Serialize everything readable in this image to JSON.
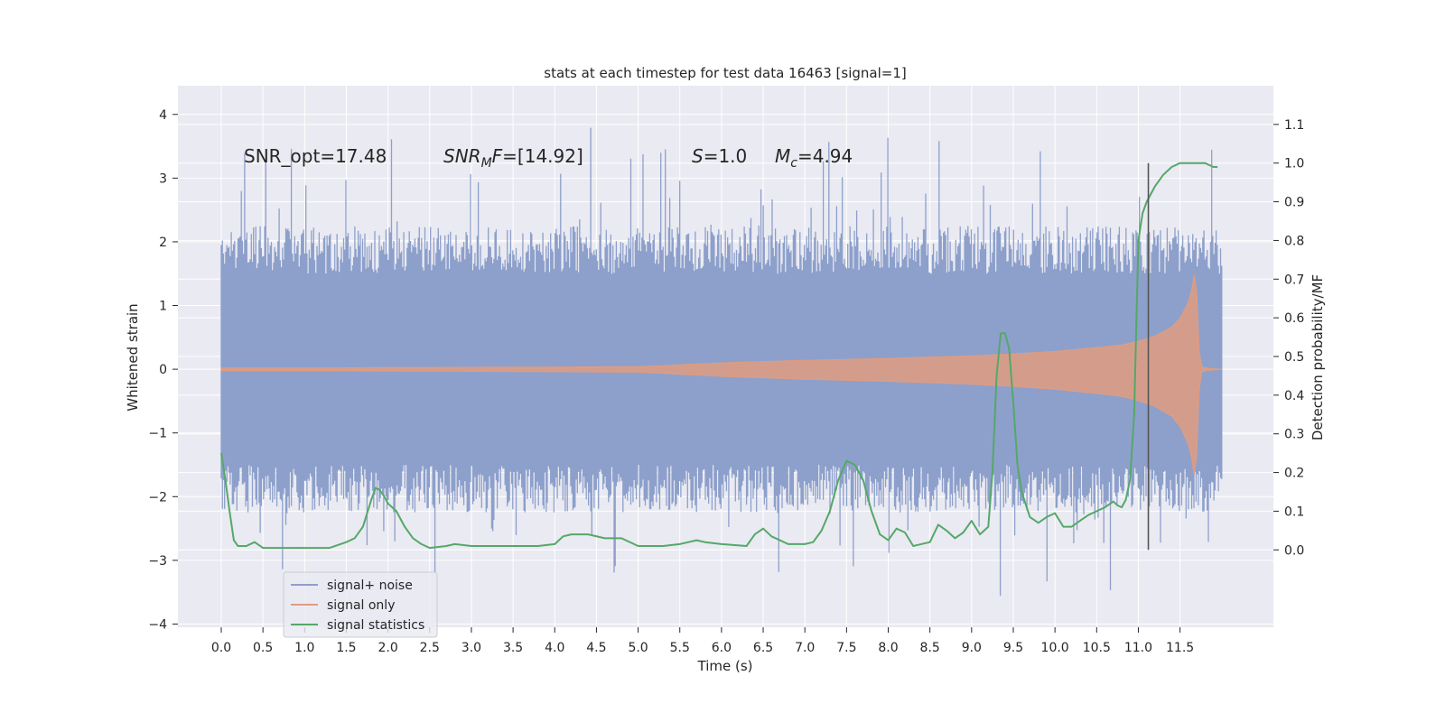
{
  "chart_data": {
    "type": "line",
    "title": "stats at each timestep for test data 16463 [signal=1]",
    "xlabel": "Time (s)",
    "ylabel_left": "Whitened strain",
    "ylabel_right": "Detection probability/MF",
    "xlim": [
      -0.52,
      12.62
    ],
    "ylim_left": [
      -4.05,
      4.45
    ],
    "ylim_right": [
      -0.2,
      1.2
    ],
    "x_ticks": [
      0.0,
      0.5,
      1.0,
      1.5,
      2.0,
      2.5,
      3.0,
      3.5,
      4.0,
      4.5,
      5.0,
      5.5,
      6.0,
      6.5,
      7.0,
      7.5,
      8.0,
      8.5,
      9.0,
      9.5,
      10.0,
      10.5,
      11.0,
      11.5
    ],
    "x_tick_labels": [
      "0.0",
      "0.5",
      "1.0",
      "1.5",
      "2.0",
      "2.5",
      "3.0",
      "3.5",
      "4.0",
      "4.5",
      "5.0",
      "5.5",
      "6.0",
      "6.5",
      "7.0",
      "7.5",
      "8.0",
      "8.5",
      "9.0",
      "9.5",
      "10.0",
      "10.5",
      "11.0",
      "11.5"
    ],
    "y_left_ticks": [
      4,
      3,
      2,
      1,
      0,
      -1,
      -2,
      -3,
      -4
    ],
    "y_left_tick_labels": [
      "4",
      "3",
      "2",
      "1",
      "0",
      "−1",
      "−2",
      "−3",
      "−4"
    ],
    "y_right_ticks": [
      1.1,
      1.0,
      0.9,
      0.8,
      0.7,
      0.6,
      0.5,
      0.4,
      0.3,
      0.2,
      0.1,
      0.0
    ],
    "y_right_tick_labels": [
      "1.1",
      "1.0",
      "0.9",
      "0.8",
      "0.7",
      "0.6",
      "0.5",
      "0.4",
      "0.3",
      "0.2",
      "0.1",
      "0.0"
    ],
    "grid": true,
    "legend_position": "lower-left",
    "legend": [
      "signal+ noise",
      "signal only",
      "signal statistics"
    ],
    "colors": {
      "background": "#eaeaf2",
      "grid": "#ffffff",
      "signal_noise": "#8da0cb",
      "signal_only": "#e19c80",
      "statistics": "#55a868",
      "vline": "#555555"
    },
    "annotations": {
      "snr_opt": "SNR_opt=17.48",
      "snr_mf_main": "SNR",
      "snr_mf_sub": "M",
      "snr_mf_italic_f": "F",
      "snr_mf_value": "=[14.92]",
      "s_italic": "S",
      "s_value": "=1.0",
      "mc_italic": "M",
      "mc_sub": "c",
      "mc_value": "=4.94"
    },
    "noise_envelope": {
      "x_range": [
        0.0,
        12.0
      ],
      "typical_upper": 2.2,
      "typical_lower": -2.2,
      "extreme_upper": 4.08,
      "extreme_lower": -3.65
    },
    "series": [
      {
        "name": "signal only",
        "axis": "left",
        "envelope_x": [
          0.0,
          1.0,
          2.0,
          3.0,
          4.0,
          5.0,
          6.0,
          7.0,
          8.0,
          8.5,
          9.0,
          9.5,
          10.0,
          10.5,
          10.8,
          11.0,
          11.2,
          11.4,
          11.5,
          11.6,
          11.65,
          11.68,
          11.7,
          11.72,
          11.75,
          11.8,
          12.0
        ],
        "envelope_y": [
          0.02,
          0.02,
          0.025,
          0.03,
          0.035,
          0.04,
          0.1,
          0.14,
          0.17,
          0.19,
          0.21,
          0.24,
          0.28,
          0.34,
          0.38,
          0.44,
          0.52,
          0.66,
          0.8,
          1.05,
          1.3,
          1.58,
          1.2,
          0.4,
          0.05,
          0.02,
          0.0
        ]
      },
      {
        "name": "signal statistics",
        "axis": "right",
        "x": [
          0.0,
          0.05,
          0.1,
          0.15,
          0.2,
          0.3,
          0.4,
          0.5,
          0.7,
          0.9,
          1.1,
          1.3,
          1.5,
          1.6,
          1.7,
          1.8,
          1.85,
          1.9,
          1.95,
          2.0,
          2.1,
          2.2,
          2.3,
          2.4,
          2.5,
          2.7,
          2.8,
          3.0,
          3.2,
          3.5,
          3.8,
          4.0,
          4.1,
          4.2,
          4.4,
          4.6,
          4.8,
          5.0,
          5.3,
          5.5,
          5.7,
          5.8,
          6.0,
          6.3,
          6.4,
          6.5,
          6.6,
          6.8,
          7.0,
          7.1,
          7.2,
          7.3,
          7.4,
          7.5,
          7.6,
          7.7,
          7.8,
          7.9,
          8.0,
          8.1,
          8.2,
          8.3,
          8.5,
          8.6,
          8.7,
          8.8,
          8.9,
          9.0,
          9.1,
          9.2,
          9.25,
          9.3,
          9.35,
          9.4,
          9.45,
          9.5,
          9.55,
          9.6,
          9.7,
          9.8,
          9.9,
          10.0,
          10.1,
          10.2,
          10.3,
          10.4,
          10.5,
          10.6,
          10.7,
          10.75,
          10.8,
          10.85,
          10.9,
          10.95,
          11.0,
          11.05,
          11.1,
          11.2,
          11.3,
          11.4,
          11.5,
          11.55,
          11.6,
          11.7,
          11.8,
          11.9,
          11.95
        ],
        "y": [
          0.25,
          0.18,
          0.1,
          0.025,
          0.01,
          0.01,
          0.02,
          0.005,
          0.005,
          0.005,
          0.005,
          0.005,
          0.02,
          0.03,
          0.06,
          0.13,
          0.16,
          0.155,
          0.14,
          0.12,
          0.1,
          0.06,
          0.03,
          0.015,
          0.005,
          0.01,
          0.015,
          0.01,
          0.01,
          0.01,
          0.01,
          0.015,
          0.035,
          0.04,
          0.04,
          0.03,
          0.03,
          0.01,
          0.01,
          0.015,
          0.025,
          0.02,
          0.015,
          0.01,
          0.04,
          0.055,
          0.035,
          0.015,
          0.015,
          0.02,
          0.05,
          0.1,
          0.18,
          0.23,
          0.22,
          0.18,
          0.1,
          0.04,
          0.025,
          0.055,
          0.045,
          0.01,
          0.02,
          0.065,
          0.05,
          0.03,
          0.045,
          0.075,
          0.04,
          0.06,
          0.2,
          0.45,
          0.56,
          0.56,
          0.52,
          0.38,
          0.22,
          0.15,
          0.085,
          0.07,
          0.085,
          0.095,
          0.06,
          0.06,
          0.075,
          0.09,
          0.1,
          0.11,
          0.125,
          0.115,
          0.11,
          0.13,
          0.18,
          0.35,
          0.8,
          0.87,
          0.9,
          0.94,
          0.97,
          0.99,
          1.0,
          1.0,
          1.0,
          1.0,
          1.0,
          0.99,
          0.99
        ]
      }
    ],
    "vertical_line": {
      "x": 11.12,
      "y_range_right": [
        0.0,
        1.0
      ]
    }
  }
}
